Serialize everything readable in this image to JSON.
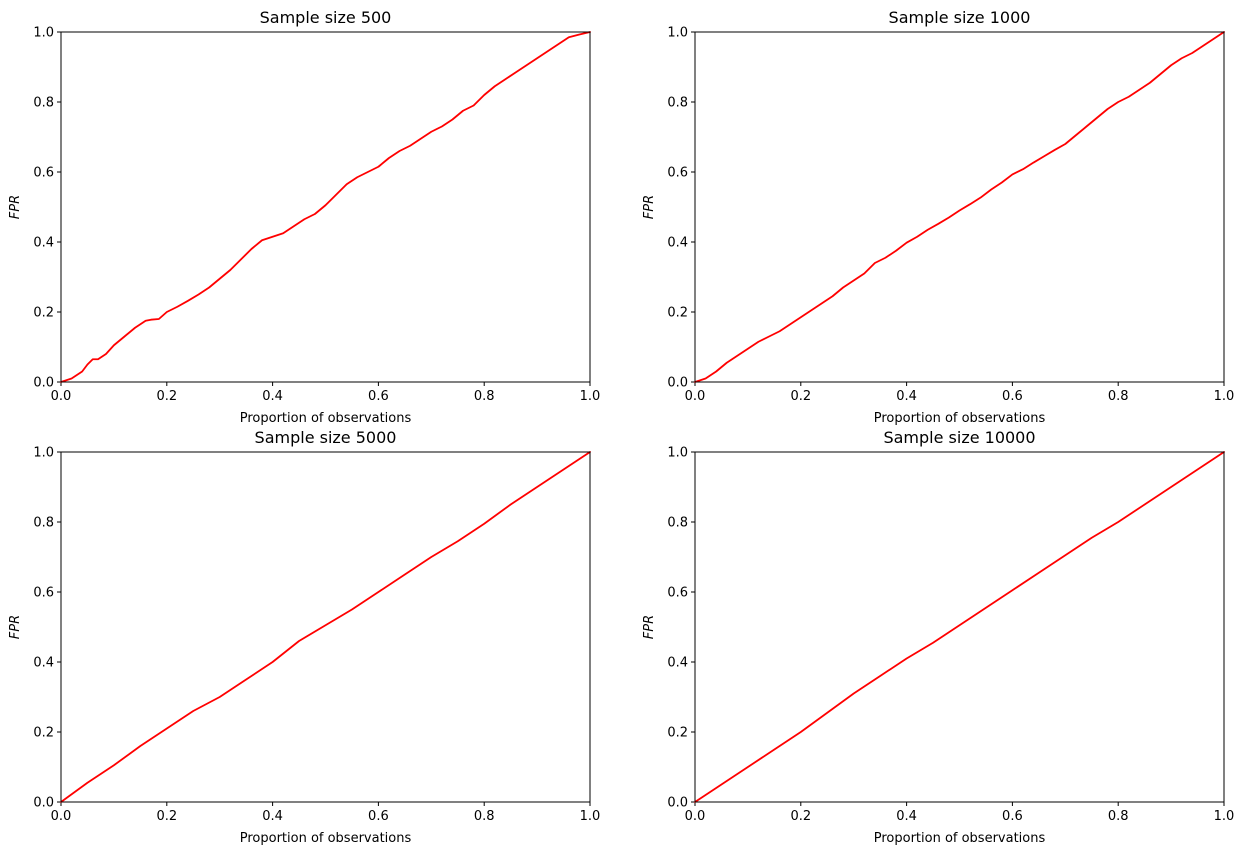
{
  "colors": {
    "line": "#ff0000",
    "frame": "#000000",
    "background": "#ffffff"
  },
  "chart_data": [
    {
      "type": "line",
      "title": "Sample size 500",
      "xlabel": "Proportion of observations",
      "ylabel": "FPR",
      "xlim": [
        0,
        1
      ],
      "ylim": [
        0,
        1
      ],
      "xticks": [
        "0.0",
        "0.2",
        "0.4",
        "0.6",
        "0.8",
        "1.0"
      ],
      "yticks": [
        "0.0",
        "0.2",
        "0.4",
        "0.6",
        "0.8",
        "1.0"
      ],
      "grid": false,
      "series": [
        {
          "x": [
            0,
            0.02,
            0.04,
            0.05,
            0.06,
            0.07,
            0.085,
            0.1,
            0.12,
            0.14,
            0.16,
            0.17,
            0.185,
            0.2,
            0.22,
            0.24,
            0.26,
            0.28,
            0.3,
            0.32,
            0.34,
            0.36,
            0.38,
            0.4,
            0.42,
            0.44,
            0.46,
            0.48,
            0.5,
            0.52,
            0.54,
            0.56,
            0.58,
            0.6,
            0.62,
            0.64,
            0.66,
            0.68,
            0.7,
            0.72,
            0.74,
            0.76,
            0.78,
            0.8,
            0.82,
            0.84,
            0.86,
            0.88,
            0.9,
            0.92,
            0.94,
            0.96,
            0.98,
            1.0
          ],
          "y": [
            0,
            0.01,
            0.03,
            0.05,
            0.065,
            0.065,
            0.08,
            0.105,
            0.13,
            0.155,
            0.175,
            0.178,
            0.18,
            0.2,
            0.215,
            0.232,
            0.25,
            0.27,
            0.295,
            0.32,
            0.35,
            0.38,
            0.405,
            0.415,
            0.425,
            0.445,
            0.465,
            0.48,
            0.505,
            0.535,
            0.565,
            0.585,
            0.6,
            0.615,
            0.64,
            0.66,
            0.675,
            0.695,
            0.715,
            0.73,
            0.75,
            0.775,
            0.79,
            0.82,
            0.845,
            0.865,
            0.885,
            0.905,
            0.925,
            0.945,
            0.965,
            0.985,
            0.993,
            1.0
          ]
        }
      ]
    },
    {
      "type": "line",
      "title": "Sample size 1000",
      "xlabel": "Proportion of observations",
      "ylabel": "FPR",
      "xlim": [
        0,
        1
      ],
      "ylim": [
        0,
        1
      ],
      "xticks": [
        "0.0",
        "0.2",
        "0.4",
        "0.6",
        "0.8",
        "1.0"
      ],
      "yticks": [
        "0.0",
        "0.2",
        "0.4",
        "0.6",
        "0.8",
        "1.0"
      ],
      "grid": false,
      "series": [
        {
          "x": [
            0,
            0.02,
            0.04,
            0.06,
            0.08,
            0.1,
            0.12,
            0.14,
            0.16,
            0.18,
            0.2,
            0.22,
            0.24,
            0.26,
            0.28,
            0.3,
            0.32,
            0.34,
            0.36,
            0.38,
            0.4,
            0.42,
            0.44,
            0.46,
            0.48,
            0.5,
            0.52,
            0.54,
            0.56,
            0.58,
            0.6,
            0.62,
            0.64,
            0.66,
            0.68,
            0.7,
            0.72,
            0.74,
            0.76,
            0.78,
            0.8,
            0.82,
            0.84,
            0.86,
            0.88,
            0.9,
            0.92,
            0.94,
            0.96,
            0.98,
            1.0
          ],
          "y": [
            0,
            0.01,
            0.03,
            0.055,
            0.075,
            0.095,
            0.115,
            0.13,
            0.145,
            0.165,
            0.185,
            0.205,
            0.225,
            0.245,
            0.27,
            0.29,
            0.31,
            0.34,
            0.355,
            0.375,
            0.398,
            0.415,
            0.435,
            0.452,
            0.47,
            0.49,
            0.508,
            0.527,
            0.55,
            0.57,
            0.593,
            0.608,
            0.627,
            0.645,
            0.663,
            0.68,
            0.705,
            0.73,
            0.755,
            0.78,
            0.8,
            0.815,
            0.835,
            0.855,
            0.88,
            0.905,
            0.925,
            0.94,
            0.96,
            0.98,
            1.0
          ]
        }
      ]
    },
    {
      "type": "line",
      "title": "Sample size 5000",
      "xlabel": "Proportion of observations",
      "ylabel": "FPR",
      "xlim": [
        0,
        1
      ],
      "ylim": [
        0,
        1
      ],
      "xticks": [
        "0.0",
        "0.2",
        "0.4",
        "0.6",
        "0.8",
        "1.0"
      ],
      "yticks": [
        "0.0",
        "0.2",
        "0.4",
        "0.6",
        "0.8",
        "1.0"
      ],
      "grid": false,
      "series": [
        {
          "x": [
            0,
            0.05,
            0.1,
            0.15,
            0.2,
            0.25,
            0.3,
            0.35,
            0.4,
            0.45,
            0.5,
            0.55,
            0.6,
            0.65,
            0.7,
            0.75,
            0.8,
            0.85,
            0.9,
            0.95,
            1.0
          ],
          "y": [
            0,
            0.055,
            0.105,
            0.16,
            0.21,
            0.26,
            0.3,
            0.35,
            0.4,
            0.46,
            0.505,
            0.55,
            0.6,
            0.65,
            0.7,
            0.745,
            0.795,
            0.85,
            0.9,
            0.95,
            1.0
          ]
        }
      ]
    },
    {
      "type": "line",
      "title": "Sample size 10000",
      "xlabel": "Proportion of observations",
      "ylabel": "FPR",
      "xlim": [
        0,
        1
      ],
      "ylim": [
        0,
        1
      ],
      "xticks": [
        "0.0",
        "0.2",
        "0.4",
        "0.6",
        "0.8",
        "1.0"
      ],
      "yticks": [
        "0.0",
        "0.2",
        "0.4",
        "0.6",
        "0.8",
        "1.0"
      ],
      "grid": false,
      "series": [
        {
          "x": [
            0,
            0.05,
            0.1,
            0.15,
            0.2,
            0.25,
            0.3,
            0.35,
            0.4,
            0.45,
            0.5,
            0.55,
            0.6,
            0.65,
            0.7,
            0.75,
            0.8,
            0.85,
            0.9,
            0.95,
            1.0
          ],
          "y": [
            0,
            0.05,
            0.1,
            0.15,
            0.2,
            0.255,
            0.31,
            0.36,
            0.41,
            0.455,
            0.505,
            0.555,
            0.605,
            0.655,
            0.705,
            0.755,
            0.8,
            0.85,
            0.9,
            0.95,
            1.0
          ]
        }
      ]
    }
  ]
}
